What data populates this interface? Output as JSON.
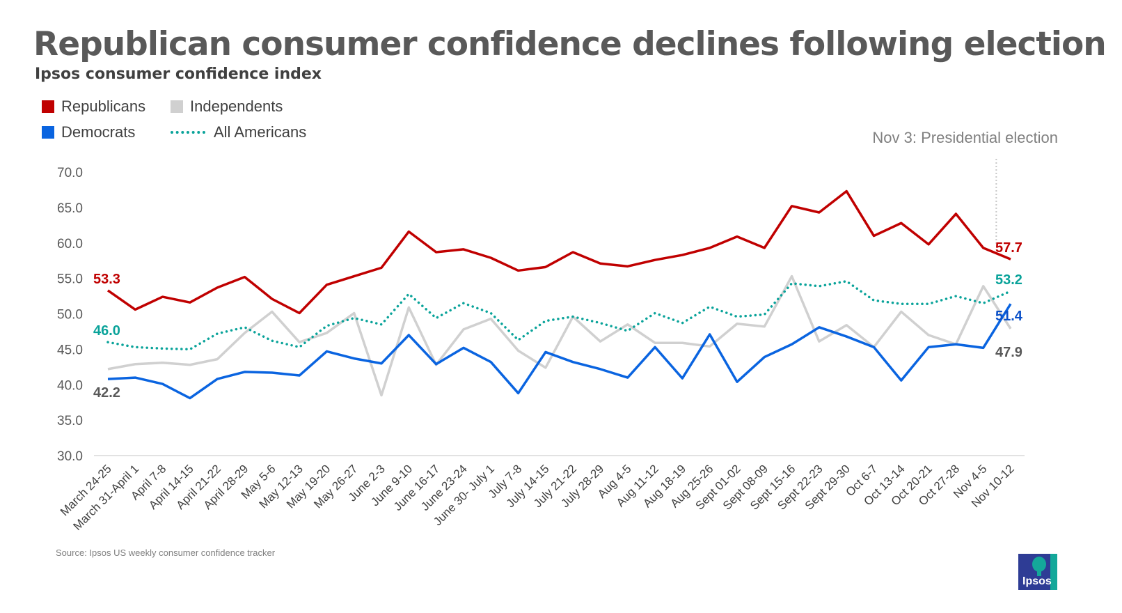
{
  "title": "Republican consumer confidence declines following election",
  "subtitle": "Ipsos consumer confidence index",
  "annotation": "Nov 3: Presidential election",
  "source": "Source: Ipsos US weekly consumer confidence tracker",
  "logo_text": "Ipsos",
  "chart_data": {
    "type": "line",
    "title": "Republican consumer confidence declines following election",
    "subtitle": "Ipsos consumer confidence index",
    "ylim": [
      30,
      70
    ],
    "yticks": [
      "30.0",
      "35.0",
      "40.0",
      "45.0",
      "50.0",
      "55.0",
      "60.0",
      "65.0",
      "70.0"
    ],
    "grid": false,
    "legend_position": "top-left",
    "categories": [
      "March 24-25",
      "March 31-April 1",
      "April 7-8",
      "April 14-15",
      "April 21-22",
      "April 28-29",
      "May 5-6",
      "May 12-13",
      "May 19-20",
      "May 26-27",
      "June 2-3",
      "June 9-10",
      "June 16-17",
      "June 23-24",
      "June 30- July 1",
      "July 7-8",
      "July 14-15",
      "July 21-22",
      "July 28-29",
      "Aug 4-5",
      "Aug 11-12",
      "Aug 18-19",
      "Aug 25-26",
      "Sept 01-02",
      "Sept 08-09",
      "Sept 15-16",
      "Sept 22-23",
      "Sept 29-30",
      "Oct 6-7",
      "Oct 13-14",
      "Oct 20-21",
      "Oct 27-28",
      "Nov 4-5",
      "Nov 10-12"
    ],
    "series": [
      {
        "name": "Republicans",
        "color": "#c00000",
        "style": "solid",
        "first_label": "53.3",
        "last_label": "57.7",
        "values": [
          53.3,
          50.6,
          52.4,
          51.6,
          53.7,
          55.2,
          52.1,
          50.1,
          54.1,
          55.3,
          56.5,
          61.6,
          58.7,
          59.1,
          57.9,
          56.1,
          56.6,
          58.7,
          57.1,
          56.7,
          57.6,
          58.3,
          59.3,
          60.9,
          59.3,
          65.2,
          64.3,
          67.3,
          61.0,
          62.8,
          59.8,
          64.1,
          59.3,
          57.7
        ]
      },
      {
        "name": "Independents",
        "color": "#d0d0d0",
        "style": "solid",
        "first_label": "42.2",
        "last_label": "47.9",
        "values": [
          42.2,
          42.9,
          43.1,
          42.8,
          43.6,
          47.3,
          50.3,
          46.0,
          47.3,
          50.1,
          38.5,
          50.9,
          42.8,
          47.8,
          49.3,
          44.8,
          42.4,
          49.6,
          46.1,
          48.5,
          45.9,
          45.9,
          45.4,
          48.6,
          48.2,
          55.3,
          46.1,
          48.4,
          45.3,
          50.3,
          47.0,
          45.7,
          53.9,
          47.9
        ]
      },
      {
        "name": "Democrats",
        "color": "#0a64e0",
        "style": "solid",
        "first_label": "",
        "last_label": "51.4",
        "values": [
          40.8,
          41.0,
          40.1,
          38.1,
          40.8,
          41.8,
          41.7,
          41.3,
          44.7,
          43.7,
          43.0,
          47.0,
          42.9,
          45.2,
          43.2,
          38.8,
          44.6,
          43.2,
          42.2,
          41.0,
          45.3,
          40.9,
          47.1,
          40.4,
          43.9,
          45.7,
          48.1,
          46.8,
          45.3,
          40.6,
          45.3,
          45.7,
          45.2,
          51.4
        ]
      },
      {
        "name": "All Americans",
        "color": "#0aa39a",
        "style": "dotted",
        "first_label": "46.0",
        "last_label": "53.2",
        "values": [
          46.0,
          45.3,
          45.1,
          45.0,
          47.2,
          48.1,
          46.2,
          45.3,
          48.3,
          49.4,
          48.5,
          52.8,
          49.4,
          51.5,
          50.1,
          46.3,
          49.0,
          49.6,
          48.7,
          47.6,
          50.1,
          48.7,
          51.0,
          49.6,
          49.9,
          54.3,
          53.9,
          54.6,
          51.9,
          51.4,
          51.4,
          52.5,
          51.5,
          53.2
        ]
      }
    ],
    "event_marker": {
      "between": [
        "Nov 4-5",
        "Nov 10-12"
      ],
      "label": "Nov 3: Presidential election"
    }
  }
}
